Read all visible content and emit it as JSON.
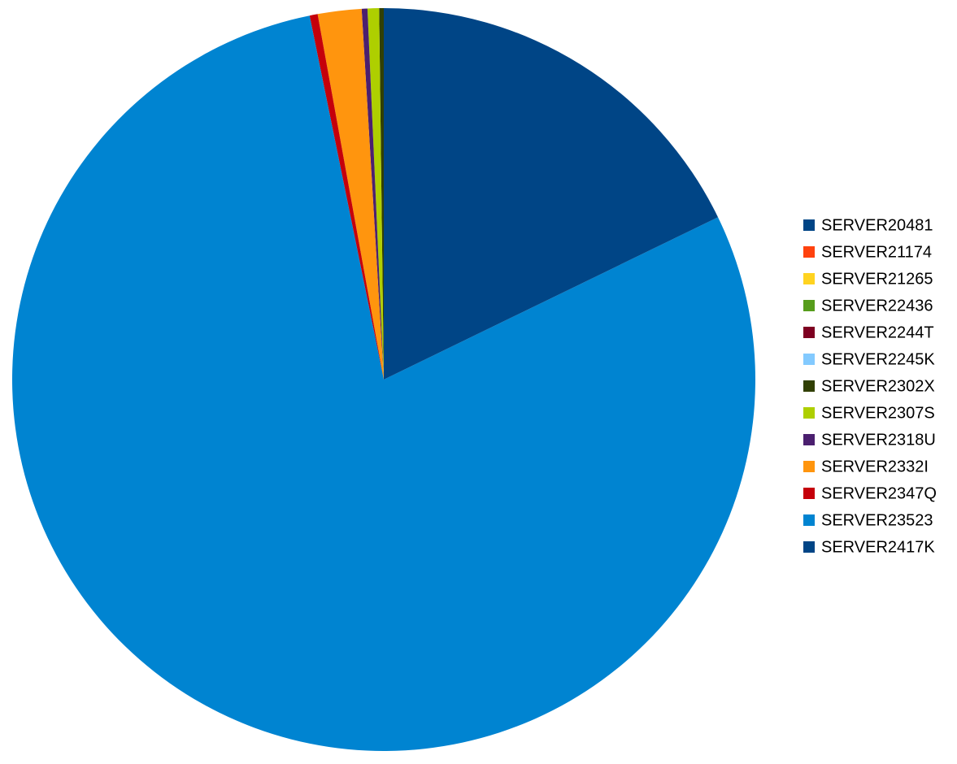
{
  "chart_data": {
    "type": "pie",
    "categories": [
      "SERVER20481",
      "SERVER21174",
      "SERVER21265",
      "SERVER22436",
      "SERVER2244T",
      "SERVER2245K",
      "SERVER2302X",
      "SERVER2307S",
      "SERVER2318U",
      "SERVER2332I",
      "SERVER2347Q",
      "SERVER23523",
      "SERVER2417K"
    ],
    "values": [
      0,
      0,
      0,
      0,
      0,
      0,
      0.2,
      0.5,
      0.25,
      1.9,
      0.35,
      79,
      17.8
    ],
    "colors": [
      "#004586",
      "#ff420e",
      "#ffd320",
      "#579d1c",
      "#7e0021",
      "#83caff",
      "#314004",
      "#aecf00",
      "#4b1f6f",
      "#ff950e",
      "#c5000b",
      "#0084d1",
      "#004586"
    ],
    "direction": "counterclockwise",
    "legend": "right"
  }
}
